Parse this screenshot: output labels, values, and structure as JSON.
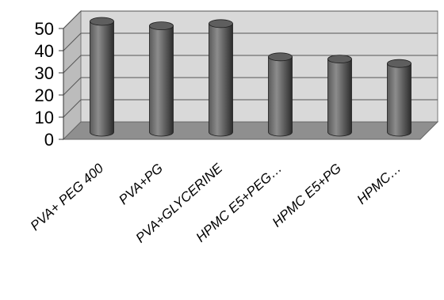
{
  "chart_data": {
    "type": "bar",
    "style": "3d-cylinder",
    "title": "",
    "xlabel": "",
    "ylabel": "",
    "categories": [
      "PVA+ PEG 400",
      "PVA+PG",
      "PVA+GLYCERINE",
      "HPMC E5+PEG…",
      "HPMC E5+PG",
      "HPMC…"
    ],
    "values": [
      50,
      48,
      49,
      34,
      33,
      31
    ],
    "ylim": [
      0,
      50
    ],
    "yticks": [
      "0",
      "10",
      "20",
      "30",
      "40",
      "50"
    ],
    "grid": true,
    "legend": "none",
    "colors": {
      "bar_light": "#8a8a8a",
      "bar_dark": "#2f2f2f",
      "back_wall": "#d9d9d9",
      "floor": "#8f8f8f",
      "side_wall": "#bcbcbc",
      "gridline": "#555555"
    }
  }
}
